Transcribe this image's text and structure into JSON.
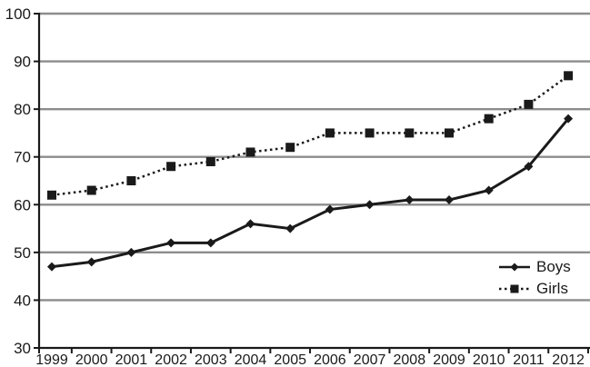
{
  "chart_data": {
    "type": "line",
    "categories": [
      "1999",
      "2000",
      "2001",
      "2002",
      "2003",
      "2004",
      "2005",
      "2006",
      "2007",
      "2008",
      "2009",
      "2010",
      "2011",
      "2012"
    ],
    "series": [
      {
        "name": "Boys",
        "values": [
          47,
          48,
          50,
          52,
          52,
          56,
          55,
          59,
          60,
          61,
          61,
          63,
          68,
          78
        ],
        "line_style": "solid",
        "marker": "diamond"
      },
      {
        "name": "Girls",
        "values": [
          62,
          63,
          65,
          68,
          69,
          71,
          72,
          75,
          75,
          75,
          75,
          78,
          81,
          87
        ],
        "line_style": "dotted",
        "marker": "square"
      }
    ],
    "title": "",
    "xlabel": "",
    "ylabel": "",
    "ylim": [
      30,
      100
    ],
    "ytick_step": 10,
    "yticks": [
      30,
      40,
      50,
      60,
      70,
      80,
      90,
      100
    ],
    "grid": true,
    "legend_position": "lower-right",
    "colors": {
      "series": "#1a1a1a",
      "grid": "#8c8c8c",
      "axis": "#1a1a1a",
      "text": "#1a1a1a",
      "background": "#ffffff"
    }
  }
}
